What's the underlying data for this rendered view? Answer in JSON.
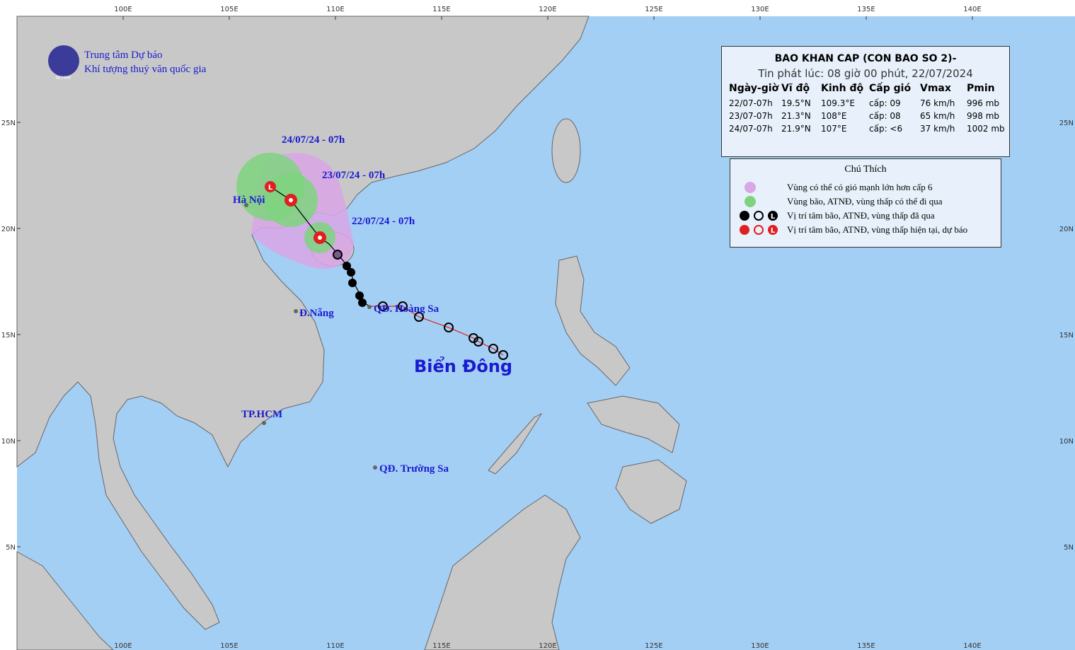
{
  "org": {
    "line1": "Trung tâm Dự báo",
    "line2": "Khí tượng thuỷ văn quốc gia",
    "logo": "NCHMF"
  },
  "bulletin": {
    "title": "BAO KHAN CAP (CON BAO SO 2)-",
    "issued": "Tin phát lúc: 08 giờ 00 phút, 22/07/2024",
    "columns": [
      "Ngày-giờ",
      "Vĩ độ",
      "Kinh độ",
      "Cấp gió",
      "Vmax",
      "Pmin"
    ],
    "rows": [
      [
        "22/07-07h",
        "19.5°N",
        "109.3°E",
        "cấp: 09",
        "76 km/h",
        "996 mb"
      ],
      [
        "23/07-07h",
        "21.3°N",
        "108°E",
        "cấp: 08",
        "65 km/h",
        "998 mb"
      ],
      [
        "24/07-07h",
        "21.9°N",
        "107°E",
        "cấp: <6",
        "37 km/h",
        "1002 mb"
      ]
    ]
  },
  "legend": {
    "title": "Chú Thích",
    "low_symbol": "L",
    "items": [
      "Vùng có thể có gió mạnh lớn hơn cấp 6",
      "Vùng bão, ATNĐ, vùng thấp có thể đi qua",
      "Vị trí tâm bão, ATNĐ, vùng thấp đã qua",
      "Vị trí tâm bão, ATNĐ, vùng thấp hiện tại, dự báo"
    ]
  },
  "labels": {
    "t24": "24/07/24 - 07h",
    "t23": "23/07/24 - 07h",
    "t22": "22/07/24 - 07h",
    "hanoi": "Hà Nội",
    "danang": "Đ.Nẵng",
    "hoangsa": "QĐ. Hoàng Sa",
    "sea": "Biển Đông",
    "hcm": "TP.HCM",
    "truongsa": "QĐ. Trường Sa"
  },
  "axes": {
    "lon": [
      "100E",
      "105E",
      "110E",
      "115E",
      "120E",
      "125E",
      "130E",
      "135E",
      "140E"
    ],
    "lat": [
      "25N",
      "20N",
      "15N",
      "10N",
      "5N"
    ]
  }
}
